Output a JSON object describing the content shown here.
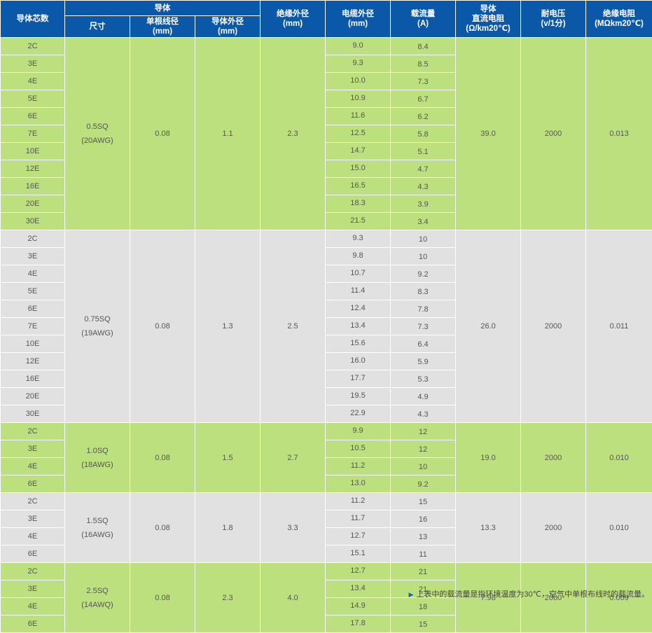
{
  "header": {
    "cores": "导体芯数",
    "conductor": "导体",
    "size": "尺寸",
    "strand": "单根线径\n(mm)",
    "cond_od": "导体外径\n(mm)",
    "ins_od": "绝缘外径\n(mm)",
    "cable_od": "电缆外径\n(mm)",
    "ampacity": "载流量\n(A)",
    "dcr": "导体\n直流电阻\n(Ω/km20℃)",
    "voltage": "耐电压\n(v/1分)",
    "ins_res": "绝缘电阻\n(MΩkm20℃)"
  },
  "groups": [
    {
      "shade": "green",
      "size": "0.5SQ\n(20AWG)",
      "strand": "0.08",
      "cond_od": "1.1",
      "ins_od": "2.3",
      "dcr": "39.0",
      "voltage": "2000",
      "ins_res": "0.013",
      "rows": [
        {
          "cores": "2C",
          "cable_od": "9.0",
          "amp": "8.4"
        },
        {
          "cores": "3E",
          "cable_od": "9.3",
          "amp": "8.5"
        },
        {
          "cores": "4E",
          "cable_od": "10.0",
          "amp": "7.3"
        },
        {
          "cores": "5E",
          "cable_od": "10.9",
          "amp": "6.7"
        },
        {
          "cores": "6E",
          "cable_od": "11.6",
          "amp": "6.2"
        },
        {
          "cores": "7E",
          "cable_od": "12.5",
          "amp": "5.8"
        },
        {
          "cores": "10E",
          "cable_od": "14.7",
          "amp": "5.1"
        },
        {
          "cores": "12E",
          "cable_od": "15.0",
          "amp": "4.7"
        },
        {
          "cores": "16E",
          "cable_od": "16.5",
          "amp": "4.3"
        },
        {
          "cores": "20E",
          "cable_od": "18.3",
          "amp": "3.9"
        },
        {
          "cores": "30E",
          "cable_od": "21.5",
          "amp": "3.4"
        }
      ]
    },
    {
      "shade": "gray",
      "size": "0.75SQ\n(19AWG)",
      "strand": "0.08",
      "cond_od": "1.3",
      "ins_od": "2.5",
      "dcr": "26.0",
      "voltage": "2000",
      "ins_res": "0.011",
      "rows": [
        {
          "cores": "2C",
          "cable_od": "9.3",
          "amp": "10"
        },
        {
          "cores": "3E",
          "cable_od": "9.8",
          "amp": "10"
        },
        {
          "cores": "4E",
          "cable_od": "10.7",
          "amp": "9.2"
        },
        {
          "cores": "5E",
          "cable_od": "11.4",
          "amp": "8.3"
        },
        {
          "cores": "6E",
          "cable_od": "12.4",
          "amp": "7.8"
        },
        {
          "cores": "7E",
          "cable_od": "13.4",
          "amp": "7.3"
        },
        {
          "cores": "10E",
          "cable_od": "15.6",
          "amp": "6.4"
        },
        {
          "cores": "12E",
          "cable_od": "16.0",
          "amp": "5.9"
        },
        {
          "cores": "16E",
          "cable_od": "17.7",
          "amp": "5.3"
        },
        {
          "cores": "20E",
          "cable_od": "19.5",
          "amp": "4.9"
        },
        {
          "cores": "30E",
          "cable_od": "22.9",
          "amp": "4.3"
        }
      ]
    },
    {
      "shade": "green",
      "size": "1.0SQ\n(18AWG)",
      "strand": "0.08",
      "cond_od": "1.5",
      "ins_od": "2.7",
      "dcr": "19.0",
      "voltage": "2000",
      "ins_res": "0.010",
      "rows": [
        {
          "cores": "2C",
          "cable_od": "9.9",
          "amp": "12"
        },
        {
          "cores": "3E",
          "cable_od": "10.5",
          "amp": "12"
        },
        {
          "cores": "4E",
          "cable_od": "11.2",
          "amp": "10"
        },
        {
          "cores": "6E",
          "cable_od": "13.0",
          "amp": "9.2"
        }
      ]
    },
    {
      "shade": "gray",
      "size": "1.5SQ\n(16AWG)",
      "strand": "0.08",
      "cond_od": "1.8",
      "ins_od": "3.3",
      "dcr": "13.3",
      "voltage": "2000",
      "ins_res": "0.010",
      "rows": [
        {
          "cores": "2C",
          "cable_od": "11.2",
          "amp": "15"
        },
        {
          "cores": "3E",
          "cable_od": "11.7",
          "amp": "16"
        },
        {
          "cores": "4E",
          "cable_od": "12.7",
          "amp": "13"
        },
        {
          "cores": "6E",
          "cable_od": "15.1",
          "amp": "11"
        }
      ]
    },
    {
      "shade": "green",
      "size": "2.5SQ\n(14AWQ)",
      "strand": "0.08",
      "cond_od": "2.3",
      "ins_od": "4.0",
      "dcr": "7.98",
      "voltage": "2000",
      "ins_res": "0.009",
      "rows": [
        {
          "cores": "2C",
          "cable_od": "12.7",
          "amp": "21"
        },
        {
          "cores": "3E",
          "cable_od": "13.4",
          "amp": "21"
        },
        {
          "cores": "4E",
          "cable_od": "14.9",
          "amp": "18"
        },
        {
          "cores": "6E",
          "cable_od": "17.8",
          "amp": "15"
        }
      ]
    }
  ],
  "footnote": {
    "icon": "triangle-right-icon",
    "text": "上表中的载流量是指环境温度为30℃，空气中单根布线时的载流量。"
  }
}
